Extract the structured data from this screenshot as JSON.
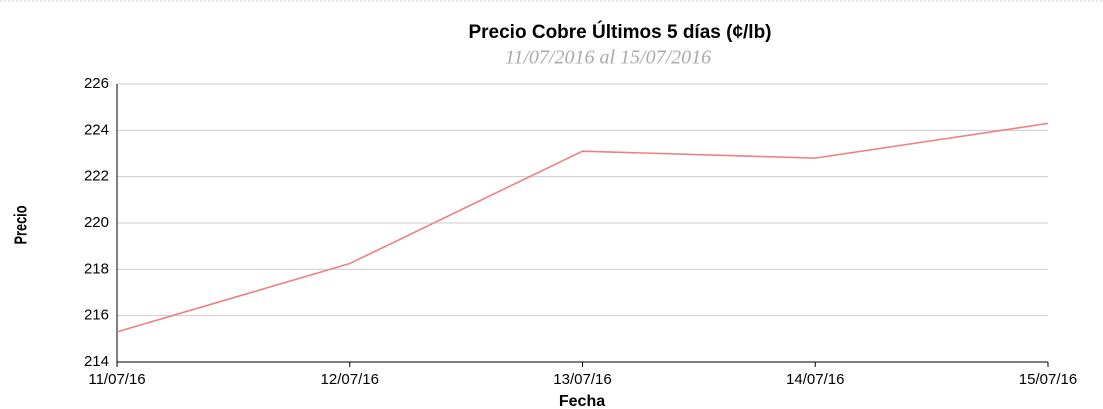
{
  "chart_data": {
    "type": "line",
    "title": "Precio Cobre Últimos 5 días (¢/lb)",
    "subtitle": "11/07/2016 al 15/07/2016",
    "x_label": "Fecha",
    "y_label": "Precio",
    "categories": [
      "11/07/16",
      "12/07/16",
      "13/07/16",
      "14/07/16",
      "15/07/16"
    ],
    "series": [
      {
        "name": "Precio",
        "color": "#f07f7f",
        "values": [
          215.3,
          218.25,
          223.1,
          222.8,
          224.3
        ]
      }
    ],
    "ylim": [
      214,
      226
    ],
    "yticks": [
      214,
      216,
      218,
      220,
      222,
      224,
      226
    ],
    "grid": true
  }
}
